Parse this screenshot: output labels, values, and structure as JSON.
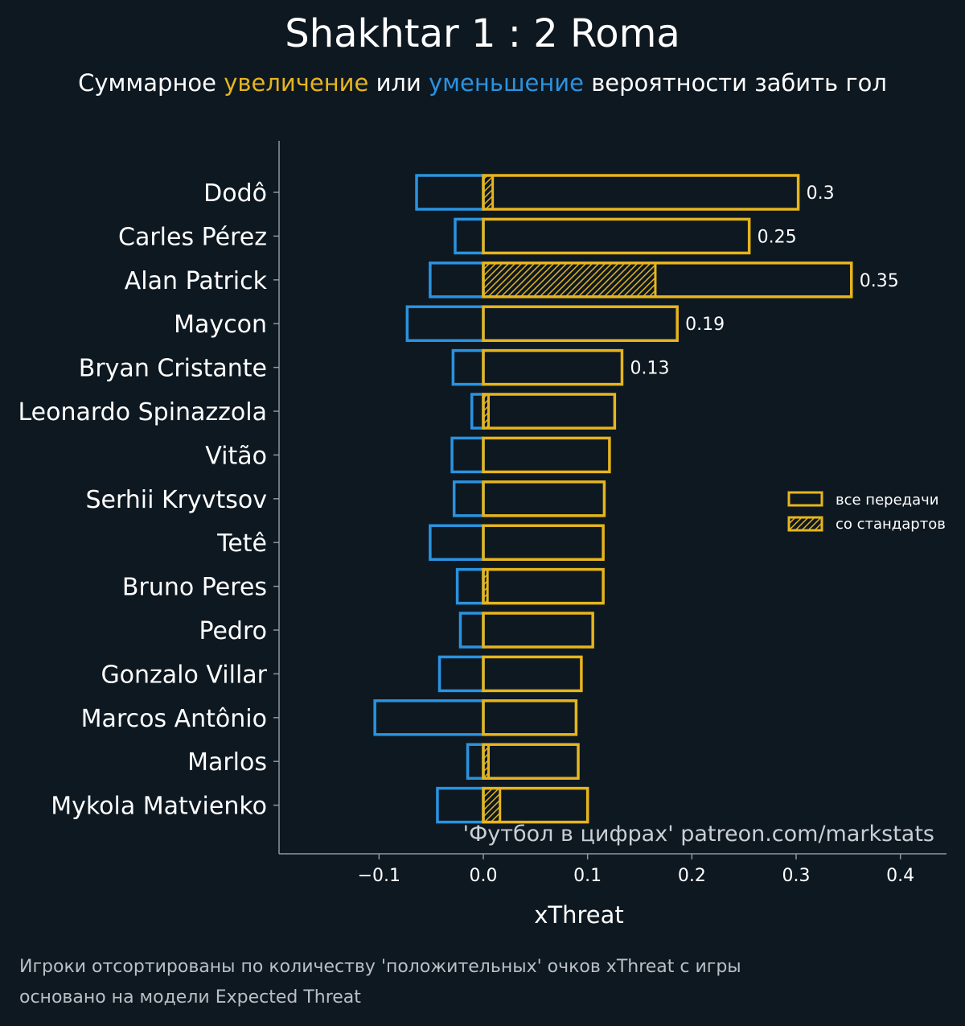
{
  "header": {
    "title": "Shakhtar 1 : 2 Roma",
    "subtitle_prefix": "Суммарное",
    "subtitle_increase": "увеличение",
    "subtitle_or": "или",
    "subtitle_decrease": "уменьшение",
    "subtitle_suffix": "вероятности забить гол"
  },
  "colors": {
    "background": "#0e1821",
    "positive": "#e6b51e",
    "negative": "#2a93e0",
    "text": "#ffffff",
    "axis": "#8b979e"
  },
  "chart_data": {
    "type": "bar",
    "orientation": "horizontal",
    "xlabel": "xThreat",
    "xlim": [
      -0.195,
      0.445
    ],
    "xticks": [
      -0.1,
      0.0,
      0.1,
      0.2,
      0.3,
      0.4
    ],
    "xtick_labels": [
      "−0.1",
      "0.0",
      "0.1",
      "0.2",
      "0.3",
      "0.4"
    ],
    "categories": [
      "Dodô",
      "Carles Pérez",
      "Alan Patrick",
      "Maycon",
      "Bryan Cristante",
      "Leonardo Spinazzola",
      "Vitão",
      "Serhii Kryvtsov",
      "Tetê",
      "Bruno Peres",
      "Pedro",
      "Gonzalo Villar",
      "Marcos Antônio",
      "Marlos",
      "Mykola Matvienko"
    ],
    "series": [
      {
        "name": "все передачи",
        "values": [
          0.302,
          0.255,
          0.353,
          0.186,
          0.133,
          0.126,
          0.121,
          0.116,
          0.115,
          0.115,
          0.105,
          0.094,
          0.089,
          0.091,
          0.1
        ]
      },
      {
        "name": "со стандартов",
        "values": [
          0.009,
          0.0,
          0.165,
          0.0,
          0.0,
          0.005,
          0.0,
          0.0,
          0.0,
          0.004,
          0.0,
          0.0,
          0.0,
          0.005,
          0.016
        ]
      },
      {
        "name": "negative",
        "values": [
          -0.064,
          -0.027,
          -0.051,
          -0.073,
          -0.029,
          -0.011,
          -0.03,
          -0.028,
          -0.051,
          -0.025,
          -0.022,
          -0.042,
          -0.104,
          -0.015,
          -0.044
        ]
      }
    ],
    "data_labels": [
      "0.3",
      "0.25",
      "0.35",
      "0.19",
      "0.13",
      "",
      "",
      "",
      "",
      "",
      "",
      "",
      "",
      "",
      ""
    ],
    "legend": {
      "position": "right",
      "entries": [
        "все передачи",
        "со стандартов"
      ]
    },
    "watermark": "'Футбол в цифрах' patreon.com/markstats"
  },
  "footnote": {
    "line1": "Игроки отсортированы по количеству 'положительных' очков xThreat с игры",
    "line2": "основано на модели Expected Threat"
  }
}
